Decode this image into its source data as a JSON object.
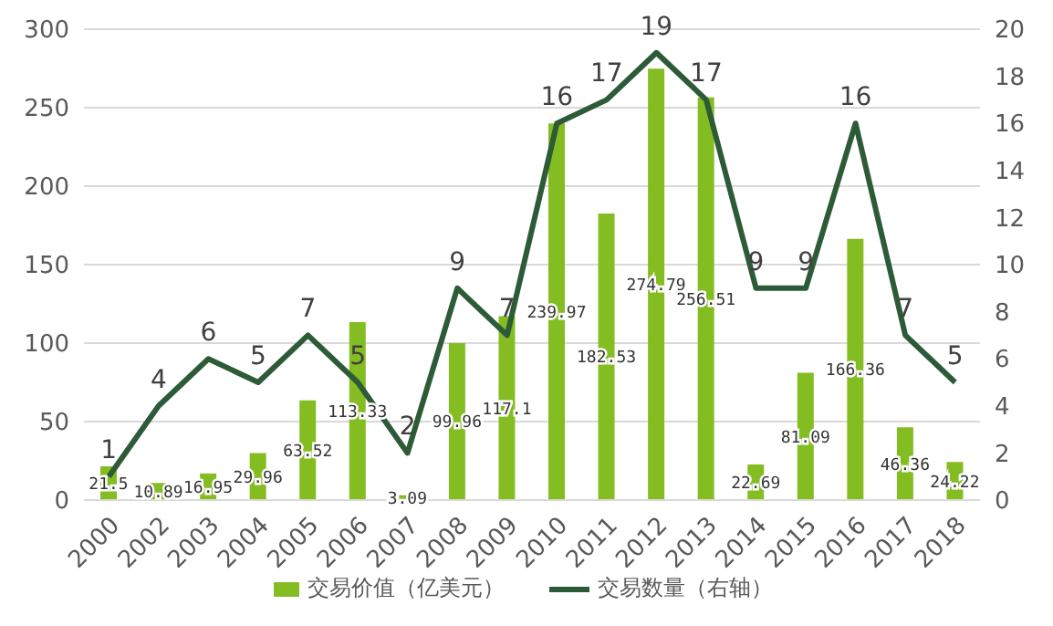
{
  "chart_data": {
    "type": "bar",
    "categories": [
      "2000",
      "2002",
      "2003",
      "2004",
      "2005",
      "2006",
      "2007",
      "2008",
      "2009",
      "2010",
      "2011",
      "2012",
      "2013",
      "2014",
      "2015",
      "2016",
      "2017",
      "2018"
    ],
    "series": [
      {
        "name": "交易价值（亿美元）",
        "color": "#84bd22",
        "values": [
          21.5,
          10.89,
          16.95,
          29.96,
          63.52,
          113.33,
          3.09,
          99.96,
          117.1,
          239.97,
          182.53,
          274.79,
          256.51,
          22.69,
          81.09,
          166.36,
          46.36,
          24.22
        ]
      },
      {
        "name": "交易数量（右轴）",
        "type": "line",
        "axis": "y2",
        "color": "#2d5a37",
        "values": [
          1,
          4,
          6,
          5,
          7,
          5,
          2,
          9,
          7,
          16,
          17,
          19,
          17,
          9,
          9,
          16,
          7,
          5
        ]
      }
    ],
    "ylim": [
      0,
      300
    ],
    "yticks": [
      0,
      50,
      100,
      150,
      200,
      250,
      300
    ],
    "y2lim": [
      0,
      20
    ],
    "y2ticks": [
      0,
      2,
      4,
      6,
      8,
      10,
      12,
      14,
      16,
      18,
      20
    ],
    "grid": "y",
    "legend": "bottom",
    "data_labels": true,
    "marker": "none"
  }
}
